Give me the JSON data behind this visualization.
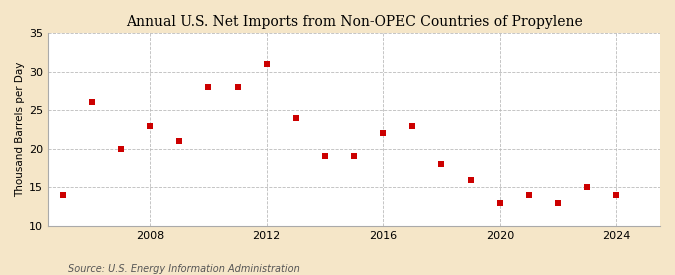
{
  "title": "Annual U.S. Net Imports from Non-OPEC Countries of Propylene",
  "ylabel": "Thousand Barrels per Day",
  "source": "Source: U.S. Energy Information Administration",
  "years": [
    2005,
    2006,
    2007,
    2008,
    2009,
    2010,
    2011,
    2012,
    2013,
    2014,
    2015,
    2016,
    2017,
    2018,
    2019,
    2020,
    2021,
    2022,
    2023,
    2024
  ],
  "values": [
    14,
    26,
    20,
    23,
    21,
    28,
    28,
    31,
    24,
    19,
    19,
    22,
    23,
    18,
    16,
    13,
    14,
    13,
    15,
    14
  ],
  "marker_color": "#cc0000",
  "marker": "s",
  "marker_size": 4,
  "ylim": [
    10,
    35
  ],
  "yticks": [
    10,
    15,
    20,
    25,
    30,
    35
  ],
  "xlim": [
    2004.5,
    2025.5
  ],
  "xticks": [
    2008,
    2012,
    2016,
    2020,
    2024
  ],
  "grid_color": "#bbbbbb",
  "outer_bg_color": "#f5e6c8",
  "inner_bg_color": "#ffffff",
  "title_fontsize": 10,
  "label_fontsize": 7.5,
  "tick_fontsize": 8,
  "source_fontsize": 7
}
